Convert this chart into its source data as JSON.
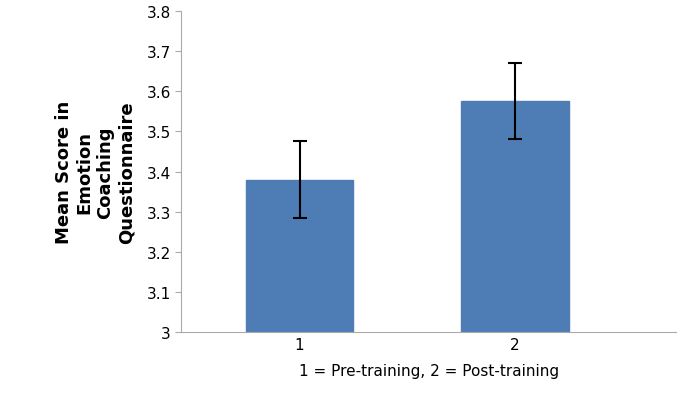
{
  "categories": [
    "1",
    "2"
  ],
  "values": [
    3.38,
    3.575
  ],
  "errors_upper": [
    0.095,
    0.095
  ],
  "errors_lower": [
    0.095,
    0.095
  ],
  "bar_color": "#4e7db5",
  "error_color": "black",
  "ylabel_lines": [
    "Mean Score in",
    "Emotion",
    "Coaching",
    "Questionnaire"
  ],
  "xlabel": "1 = Pre-training, 2 = Post-training",
  "ylim": [
    3.0,
    3.8
  ],
  "ytick_values": [
    3.0,
    3.1,
    3.2,
    3.3,
    3.4,
    3.5,
    3.6,
    3.7,
    3.8
  ],
  "ytick_labels": [
    "3",
    "3.1",
    "3.2",
    "3.3",
    "3.4",
    "3.5",
    "3.6",
    "3.7",
    "3.8"
  ],
  "bar_width": 0.5,
  "figsize": [
    6.97,
    4.06
  ],
  "dpi": 100,
  "ylabel_fontsize": 13,
  "xlabel_fontsize": 11,
  "tick_fontsize": 11,
  "x_positions": [
    1,
    2
  ],
  "xlim": [
    0.45,
    2.75
  ]
}
